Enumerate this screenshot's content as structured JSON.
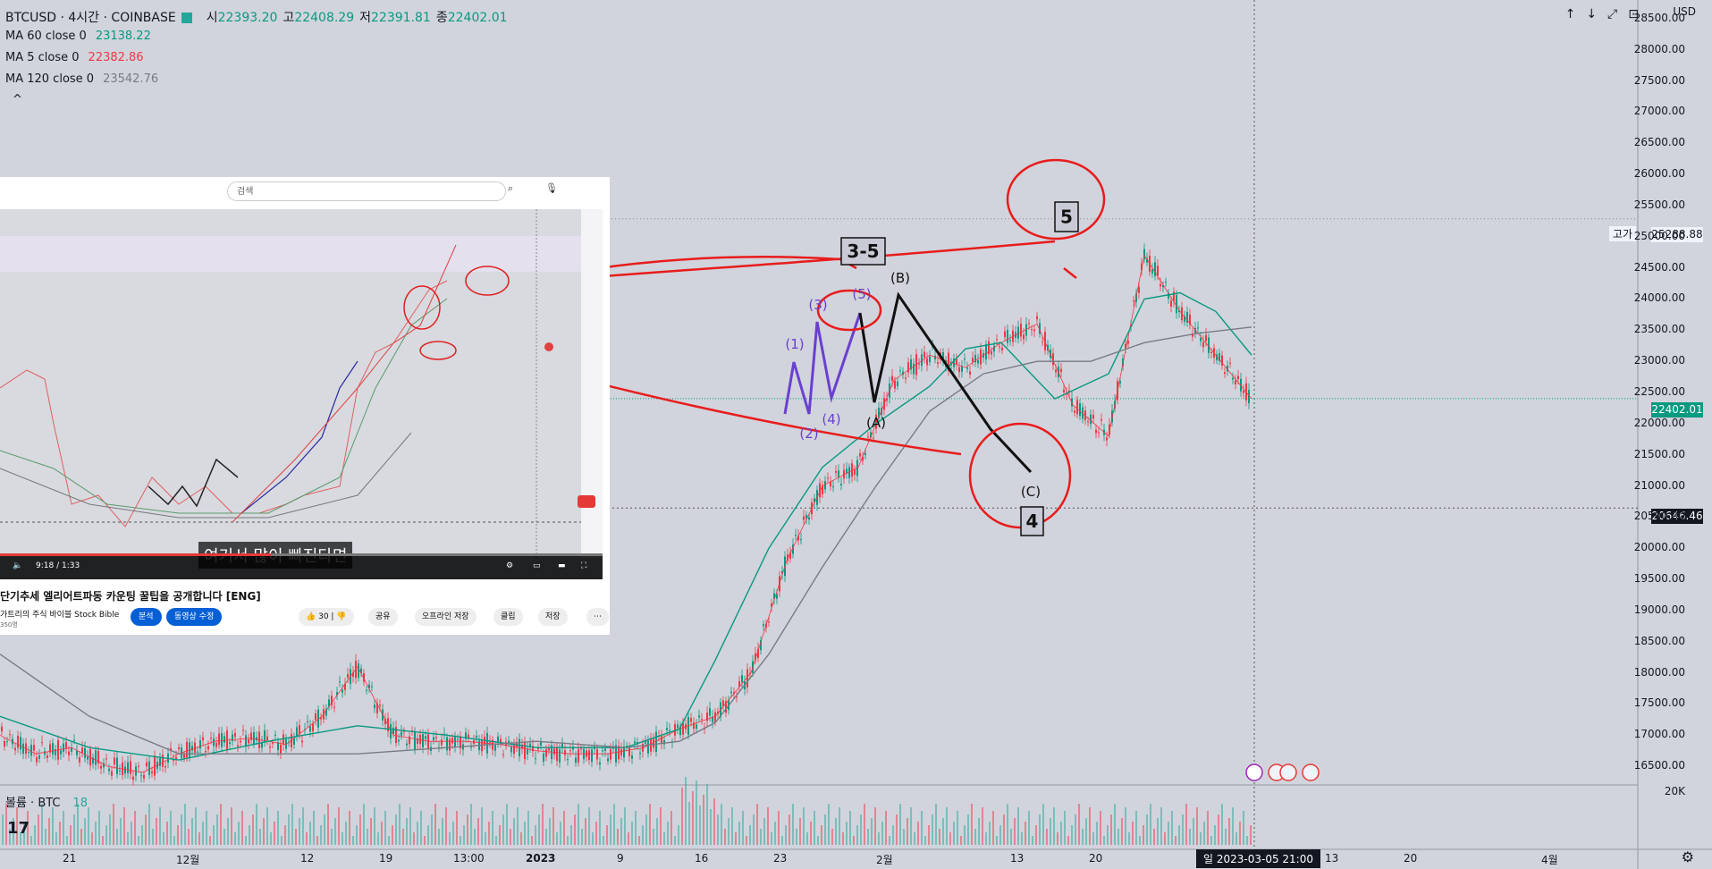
{
  "header": {
    "symbol": "BTCUSD · 4시간 · COINBASE",
    "open_label": "시",
    "open": "22393.20",
    "high_label": "고",
    "high": "22408.29",
    "low_label": "저",
    "low": "22391.81",
    "close_label": "종",
    "close": "22402.01"
  },
  "indicators": [
    {
      "label": "MA 60 close 0",
      "value": "23138.22",
      "color": "#089981"
    },
    {
      "label": "MA 5 close 0",
      "value": "22382.86",
      "color": "#f23645"
    },
    {
      "label": "MA 120 close 0",
      "value": "23542.76",
      "color": "#787b86"
    }
  ],
  "toolbar": {
    "currency": "USD",
    "collapse": "^",
    "buttons": "↑↓⤢⊡"
  },
  "volume": {
    "label": "볼륨 · BTC",
    "value": "18"
  },
  "price_tags": {
    "last": "22402.01",
    "cross": "20646.46",
    "high_label": "고가",
    "high": "25288.88"
  },
  "crosshair_date": "일 2023-03-05   21:00",
  "video": {
    "search_placeholder": "검색",
    "caption": "여기서 많이 빠진다면",
    "time": "9:18 / 1:33",
    "title": "단기추세 엘리어트파동 카운팅 꿀팁을 공개합니다 [ENG]",
    "channel": "가트리의 주식 바이블 Stock Bible",
    "subs": "350명",
    "btn_analysis": "분석",
    "btn_subscribe": "동영상 수정",
    "like": "30",
    "share": "공유",
    "offline": "오프라인 저장",
    "clip": "클립",
    "save": "저장",
    "more": "⋯",
    "progress": 0.45
  },
  "annotations": {
    "box_3_5": "3-5",
    "box_5": "5",
    "box_4": "4",
    "wave_B": "(B)",
    "wave_A": "(A)",
    "wave_C": "(C)",
    "sub_1": "(1)",
    "sub_2": "(2)",
    "sub_3": "(3)",
    "sub_4": "(4)",
    "sub_5": "(5)"
  },
  "chart_data": {
    "type": "line",
    "title": "BTCUSD · 4시간 · COINBASE",
    "ylim": [
      16200,
      28800
    ],
    "y_ticks": [
      16500,
      17000,
      17500,
      18000,
      18500,
      19000,
      19500,
      20000,
      20500,
      21000,
      21500,
      22000,
      22500,
      23000,
      23500,
      24000,
      24500,
      25000,
      25500,
      26000,
      26500,
      27000,
      27500,
      28000,
      28500
    ],
    "x_ticks": [
      "21",
      "12월",
      "12",
      "19",
      "13:00",
      "2023",
      "9",
      "16",
      "23",
      "2월",
      "13",
      "20",
      "13",
      "20",
      "4월"
    ],
    "series": [
      {
        "name": "MA 5 close 0",
        "color": "#f23645",
        "x": [
          0,
          40,
          80,
          120,
          160,
          200,
          240,
          280,
          320,
          360,
          400,
          440,
          480,
          520,
          560,
          600,
          640,
          680,
          720,
          760,
          800,
          840,
          880,
          920,
          960,
          1000,
          1040,
          1080,
          1120,
          1160,
          1200,
          1240,
          1280,
          1320,
          1360,
          1400
        ],
        "values": [
          17000,
          16700,
          16800,
          16500,
          16400,
          16700,
          16900,
          16950,
          16850,
          17300,
          18100,
          17000,
          16900,
          16900,
          16850,
          16750,
          16700,
          16700,
          16800,
          17100,
          17300,
          18000,
          19800,
          21000,
          21300,
          22700,
          23100,
          22900,
          23300,
          23600,
          22300,
          21800,
          24700,
          23800,
          23100,
          22400
        ]
      },
      {
        "name": "MA 60 close 0",
        "color": "#089981",
        "x": [
          0,
          100,
          200,
          300,
          400,
          500,
          600,
          700,
          760,
          800,
          860,
          920,
          980,
          1040,
          1080,
          1120,
          1180,
          1240,
          1280,
          1320,
          1360,
          1400
        ],
        "values": [
          17300,
          16800,
          16600,
          16900,
          17150,
          17000,
          16800,
          16800,
          17100,
          18200,
          20000,
          21300,
          22000,
          22600,
          23200,
          23300,
          22400,
          22800,
          24000,
          24100,
          23800,
          23100
        ]
      },
      {
        "name": "MA 120 close 0",
        "color": "#787b86",
        "x": [
          0,
          100,
          200,
          300,
          400,
          500,
          600,
          700,
          760,
          800,
          860,
          920,
          980,
          1040,
          1100,
          1160,
          1220,
          1280,
          1340,
          1400
        ],
        "values": [
          18300,
          17300,
          16700,
          16700,
          16700,
          16800,
          16900,
          16800,
          16900,
          17200,
          18300,
          19700,
          21000,
          22200,
          22800,
          23000,
          23000,
          23300,
          23450,
          23550
        ]
      }
    ],
    "grid": false
  }
}
